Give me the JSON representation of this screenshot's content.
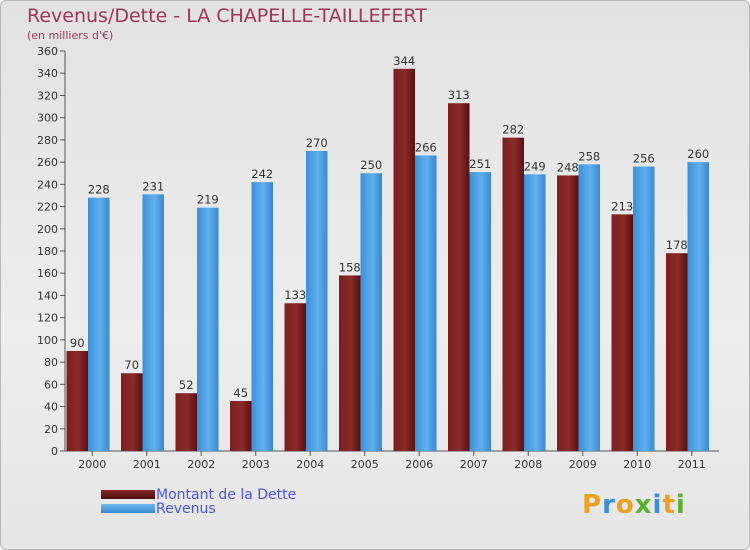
{
  "header": {
    "title": "Revenus/Dette - LA CHAPELLE-TAILLEFERT",
    "subtitle": "(en milliers d'€)"
  },
  "legend": [
    {
      "label": "Montant de la Dette",
      "color": "#6e1a1a"
    },
    {
      "label": "Revenus",
      "color": "#4a9fe0"
    }
  ],
  "logo": {
    "text": "Proxiti",
    "letters": [
      "P",
      "r",
      "o",
      "x",
      "i",
      "t",
      "i"
    ],
    "colors": [
      "#f0a020",
      "#3a8fd8",
      "#f0a020",
      "#5bb030",
      "#3a8fd8",
      "#f0a020",
      "#5bb030"
    ]
  },
  "chart_data": {
    "type": "bar",
    "title": "Revenus/Dette - LA CHAPELLE-TAILLEFERT",
    "ylabel": "(en milliers d'€)",
    "categories": [
      "2000",
      "2001",
      "2002",
      "2003",
      "2004",
      "2005",
      "2006",
      "2007",
      "2008",
      "2009",
      "2010",
      "2011"
    ],
    "series": [
      {
        "name": "Montant de la Dette",
        "color": "#6e1a1a",
        "values": [
          90,
          70,
          52,
          45,
          133,
          158,
          344,
          313,
          282,
          248,
          213,
          178
        ]
      },
      {
        "name": "Revenus",
        "color": "#4a9fe0",
        "values": [
          228,
          231,
          219,
          242,
          270,
          250,
          266,
          251,
          249,
          258,
          256,
          260
        ]
      }
    ],
    "ylim": [
      0,
      360
    ],
    "ytick_step": 20,
    "grid": false,
    "legend_position": "bottom-left"
  }
}
